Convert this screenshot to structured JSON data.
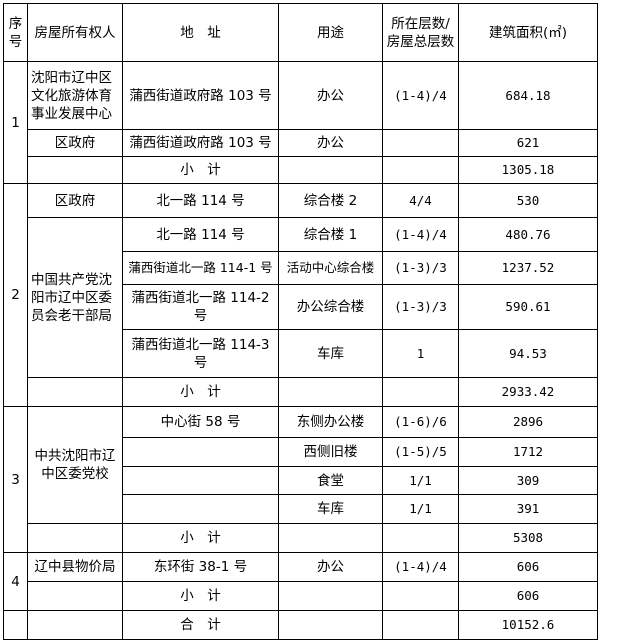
{
  "header": {
    "seq": "序号",
    "owner": "房屋所有权人",
    "address": "地　址",
    "use": "用途",
    "floors": "所在层数/房屋总层数",
    "area": "建筑面积(㎡)"
  },
  "groups": [
    {
      "seq": "1",
      "rows": [
        {
          "owner": "沈阳市辽中区文化旅游体育事业发展中心",
          "address": "蒲西街道政府路 103 号",
          "use": "办公",
          "floors": "(1-4)/4",
          "area": "684.18"
        },
        {
          "owner": "区政府",
          "address": "蒲西街道政府路 103 号",
          "use": "办公",
          "floors": "",
          "area": "621"
        }
      ],
      "subtotal_label": "小　计",
      "subtotal": "1305.18"
    },
    {
      "seq": "2",
      "rows": [
        {
          "owner": "区政府",
          "address": "北一路 114 号",
          "use": "综合楼 2",
          "floors": "4/4",
          "area": "530"
        },
        {
          "owner": "中国共产党沈阳市辽中区委员会老干部局",
          "address": "北一路 114 号",
          "use": "综合楼 1",
          "floors": "(1-4)/4",
          "area": "480.76"
        },
        {
          "address": "蒲西街道北一路 114-1 号",
          "use": "活动中心综合楼",
          "floors": "(1-3)/3",
          "area": "1237.52"
        },
        {
          "address": "蒲西街道北一路 114-2 号",
          "use": "办公综合楼",
          "floors": "(1-3)/3",
          "area": "590.61"
        },
        {
          "address": "蒲西街道北一路 114-3 号",
          "use": "车库",
          "floors": "1",
          "area": "94.53"
        }
      ],
      "subtotal_label": "小　计",
      "subtotal": "2933.42"
    },
    {
      "seq": "3",
      "rows": [
        {
          "owner": "中共沈阳市辽中区委党校",
          "address": "中心街 58 号",
          "use": "东侧办公楼",
          "floors": "(1-6)/6",
          "area": "2896"
        },
        {
          "use": "西侧旧楼",
          "floors": "(1-5)/5",
          "area": "1712"
        },
        {
          "use": "食堂",
          "floors": "1/1",
          "area": "309"
        },
        {
          "use": "车库",
          "floors": "1/1",
          "area": "391"
        }
      ],
      "subtotal_label": "小　计",
      "subtotal": "5308"
    },
    {
      "seq": "4",
      "rows": [
        {
          "owner": "辽中县物价局",
          "address": "东环街 38-1 号",
          "use": "办公",
          "floors": "(1-4)/4",
          "area": "606"
        }
      ],
      "subtotal_label": "小　计",
      "subtotal": "606"
    }
  ],
  "total_label": "合　计",
  "total": "10152.6"
}
